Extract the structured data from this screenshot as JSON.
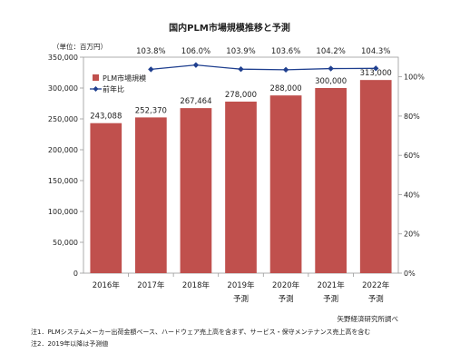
{
  "chart_data": {
    "type": "bar",
    "title": "国内PLM市場規模推移と予測",
    "unit_label": "（単位：百万円）",
    "categories": [
      "2016年",
      "2017年",
      "2018年",
      "2019年",
      "2020年",
      "2021年",
      "2022年"
    ],
    "category_notes": [
      "",
      "",
      "",
      "予測",
      "予測",
      "予測",
      "予測"
    ],
    "series": [
      {
        "name": "PLM市場規模",
        "type": "bar",
        "axis": "left",
        "color": "#c0504d",
        "values": [
          243088,
          252370,
          267464,
          278000,
          288000,
          300000,
          313000
        ],
        "labels": [
          "243,088",
          "252,370",
          "267,464",
          "278,000",
          "288,000",
          "300,000",
          "313,000"
        ]
      },
      {
        "name": "前年比",
        "type": "line",
        "axis": "right",
        "color": "#1f3f8f",
        "x": [
          "2017年",
          "2018年",
          "2019年",
          "2020年",
          "2021年",
          "2022年"
        ],
        "values": [
          103.8,
          106.0,
          103.9,
          103.6,
          104.2,
          104.3
        ],
        "labels": [
          "103.8%",
          "106.0%",
          "103.9%",
          "103.6%",
          "104.2%",
          "104.3%"
        ]
      }
    ],
    "y_left": {
      "ylim": [
        0,
        350000
      ],
      "ticks": [
        0,
        50000,
        100000,
        150000,
        200000,
        250000,
        300000,
        350000
      ],
      "tick_labels": [
        "0",
        "50,000",
        "100,000",
        "150,000",
        "200,000",
        "250,000",
        "300,000",
        "350,000"
      ]
    },
    "y_right": {
      "ylim": [
        0,
        110
      ],
      "ticks": [
        0,
        20,
        40,
        60,
        80,
        100
      ],
      "tick_labels": [
        "0%",
        "20%",
        "40%",
        "60%",
        "80%",
        "100%"
      ]
    },
    "legend_placement": "top-left",
    "grid": false
  },
  "source": "矢野経済研究所調べ",
  "notes": [
    "注1．PLMシステムメーカー出荷金額ベース、ハードウェア売上高を含まず、サービス・保守メンテナンス売上高を含む",
    "注2．2019年以降は予測値"
  ]
}
